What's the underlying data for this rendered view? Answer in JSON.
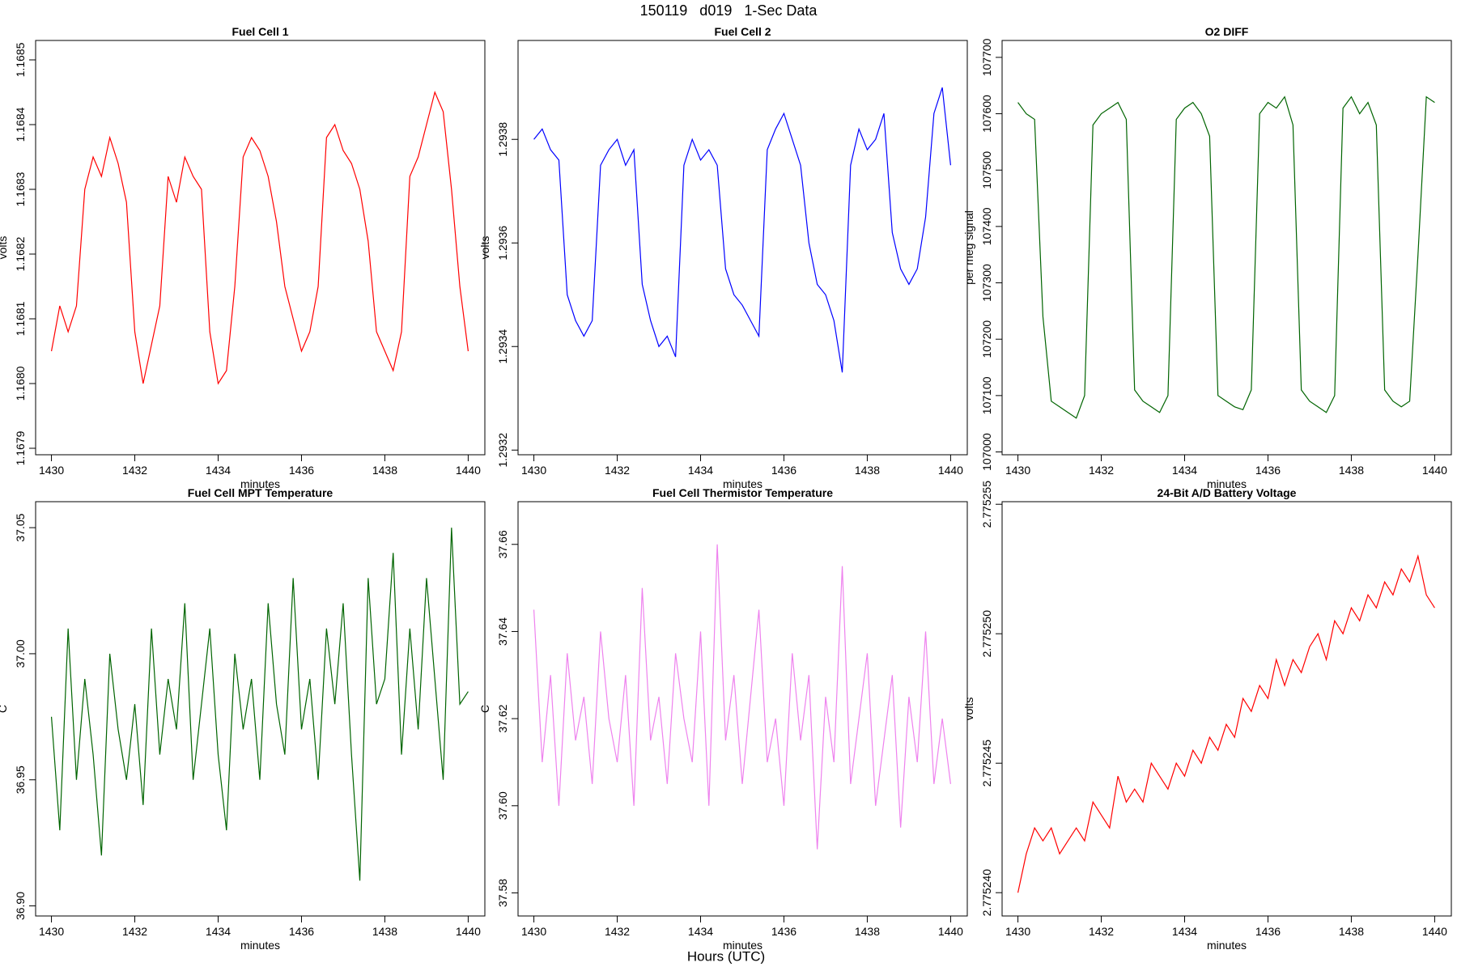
{
  "title": "150119   d019   1-Sec Data",
  "x_axis_title": "Hours (UTC)",
  "chart_data": [
    {
      "type": "line",
      "title": "Fuel Cell 1",
      "xlabel": "minutes",
      "ylabel": "volts",
      "x": [
        1430,
        1430.2,
        1430.4,
        1430.6,
        1430.8,
        1431,
        1431.2,
        1431.4,
        1431.6,
        1431.8,
        1432,
        1432.2,
        1432.4,
        1432.6,
        1432.8,
        1433,
        1433.2,
        1433.4,
        1433.6,
        1433.8,
        1434,
        1434.2,
        1434.4,
        1434.6,
        1434.8,
        1435,
        1435.2,
        1435.4,
        1435.6,
        1435.8,
        1436,
        1436.2,
        1436.4,
        1436.6,
        1436.8,
        1437,
        1437.2,
        1437.4,
        1437.6,
        1437.8,
        1438,
        1438.2,
        1438.4,
        1438.6,
        1438.8,
        1439,
        1439.2,
        1439.4,
        1439.6,
        1439.8,
        1440
      ],
      "series": [
        {
          "color": "#ff0000",
          "values": [
            1.16805,
            1.16812,
            1.16808,
            1.16812,
            1.1683,
            1.16835,
            1.16832,
            1.16838,
            1.16834,
            1.16828,
            1.16808,
            1.168,
            1.16806,
            1.16812,
            1.16832,
            1.16828,
            1.16835,
            1.16832,
            1.1683,
            1.16808,
            1.168,
            1.16802,
            1.16815,
            1.16835,
            1.16838,
            1.16836,
            1.16832,
            1.16825,
            1.16815,
            1.1681,
            1.16805,
            1.16808,
            1.16815,
            1.16838,
            1.1684,
            1.16836,
            1.16834,
            1.1683,
            1.16822,
            1.16808,
            1.16805,
            1.16802,
            1.16808,
            1.16832,
            1.16835,
            1.1684,
            1.16845,
            1.16842,
            1.1683,
            1.16815,
            1.16805
          ]
        }
      ],
      "xlim": [
        1429.62,
        1440.4
      ],
      "xticks": [
        1430,
        1432,
        1434,
        1436,
        1438,
        1440
      ],
      "ylim": [
        1.16789,
        1.16853
      ],
      "yticks": [
        1.1679,
        {
          "value": 1.168,
          "label": "1.1680"
        },
        1.1681,
        1.1682,
        1.1683,
        1.1684,
        1.1685
      ]
    },
    {
      "type": "line",
      "title": "Fuel Cell 2",
      "xlabel": "minutes",
      "ylabel": "volts",
      "x": [
        1430,
        1430.2,
        1430.4,
        1430.6,
        1430.8,
        1431,
        1431.2,
        1431.4,
        1431.6,
        1431.8,
        1432,
        1432.2,
        1432.4,
        1432.6,
        1432.8,
        1433,
        1433.2,
        1433.4,
        1433.6,
        1433.8,
        1434,
        1434.2,
        1434.4,
        1434.6,
        1434.8,
        1435,
        1435.2,
        1435.4,
        1435.6,
        1435.8,
        1436,
        1436.2,
        1436.4,
        1436.6,
        1436.8,
        1437,
        1437.2,
        1437.4,
        1437.6,
        1437.8,
        1438,
        1438.2,
        1438.4,
        1438.6,
        1438.8,
        1439,
        1439.2,
        1439.4,
        1439.6,
        1439.8,
        1440
      ],
      "series": [
        {
          "color": "#0000ff",
          "values": [
            1.2938,
            1.29382,
            1.29378,
            1.29376,
            1.2935,
            1.29345,
            1.29342,
            1.29345,
            1.29375,
            1.29378,
            1.2938,
            1.29375,
            1.29378,
            1.29352,
            1.29345,
            1.2934,
            1.29342,
            1.29338,
            1.29375,
            1.2938,
            1.29376,
            1.29378,
            1.29375,
            1.29355,
            1.2935,
            1.29348,
            1.29345,
            1.29342,
            1.29378,
            1.29382,
            1.29385,
            1.2938,
            1.29375,
            1.2936,
            1.29352,
            1.2935,
            1.29345,
            1.29335,
            1.29375,
            1.29382,
            1.29378,
            1.2938,
            1.29385,
            1.29362,
            1.29355,
            1.29352,
            1.29355,
            1.29365,
            1.29385,
            1.2939,
            1.29375
          ]
        }
      ],
      "xlim": [
        1429.62,
        1440.4
      ],
      "xticks": [
        1430,
        1432,
        1434,
        1436,
        1438,
        1440
      ],
      "ylim": [
        1.293191,
        1.293991
      ],
      "yticks": [
        1.2932,
        1.2934,
        1.2936,
        1.2938
      ]
    },
    {
      "type": "line",
      "title": "O2 DIFF",
      "xlabel": "minutes",
      "ylabel": "per meg signal",
      "x": [
        1430,
        1430.2,
        1430.4,
        1430.6,
        1430.8,
        1431,
        1431.2,
        1431.4,
        1431.6,
        1431.8,
        1432,
        1432.2,
        1432.4,
        1432.6,
        1432.8,
        1433,
        1433.2,
        1433.4,
        1433.6,
        1433.8,
        1434,
        1434.2,
        1434.4,
        1434.6,
        1434.8,
        1435,
        1435.2,
        1435.4,
        1435.6,
        1435.8,
        1436,
        1436.2,
        1436.4,
        1436.6,
        1436.8,
        1437,
        1437.2,
        1437.4,
        1437.6,
        1437.8,
        1438,
        1438.2,
        1438.4,
        1438.6,
        1438.8,
        1439,
        1439.2,
        1439.4,
        1439.6,
        1439.8,
        1440
      ],
      "series": [
        {
          "color": "#006400",
          "values": [
            107620,
            107600,
            107590,
            107240,
            107090,
            107080,
            107070,
            107060,
            107100,
            107580,
            107600,
            107610,
            107620,
            107590,
            107110,
            107090,
            107080,
            107070,
            107100,
            107590,
            107610,
            107620,
            107600,
            107560,
            107100,
            107090,
            107080,
            107075,
            107110,
            107600,
            107620,
            107610,
            107630,
            107580,
            107110,
            107090,
            107080,
            107070,
            107100,
            107610,
            107630,
            107600,
            107620,
            107580,
            107110,
            107090,
            107080,
            107090,
            107350,
            107630,
            107620
          ]
        }
      ],
      "xlim": [
        1429.62,
        1440.4
      ],
      "xticks": [
        1430,
        1432,
        1434,
        1436,
        1438,
        1440
      ],
      "ylim": [
        106995,
        107730
      ],
      "yticks": [
        107000,
        107100,
        107200,
        107300,
        107400,
        107500,
        107600,
        107700
      ]
    },
    {
      "type": "line",
      "title": "Fuel Cell MPT Temperature",
      "xlabel": "minutes",
      "ylabel": "C",
      "x": [
        1430,
        1430.2,
        1430.4,
        1430.6,
        1430.8,
        1431,
        1431.2,
        1431.4,
        1431.6,
        1431.8,
        1432,
        1432.2,
        1432.4,
        1432.6,
        1432.8,
        1433,
        1433.2,
        1433.4,
        1433.6,
        1433.8,
        1434,
        1434.2,
        1434.4,
        1434.6,
        1434.8,
        1435,
        1435.2,
        1435.4,
        1435.6,
        1435.8,
        1436,
        1436.2,
        1436.4,
        1436.6,
        1436.8,
        1437,
        1437.2,
        1437.4,
        1437.6,
        1437.8,
        1438,
        1438.2,
        1438.4,
        1438.6,
        1438.8,
        1439,
        1439.2,
        1439.4,
        1439.6,
        1439.8,
        1440
      ],
      "series": [
        {
          "color": "#006400",
          "values": [
            36.975,
            36.93,
            37.01,
            36.95,
            36.99,
            36.96,
            36.92,
            37.0,
            36.97,
            36.95,
            36.98,
            36.94,
            37.01,
            36.96,
            36.99,
            36.97,
            37.02,
            36.95,
            36.98,
            37.01,
            36.96,
            36.93,
            37.0,
            36.97,
            36.99,
            36.95,
            37.02,
            36.98,
            36.96,
            37.03,
            36.97,
            36.99,
            36.95,
            37.01,
            36.98,
            37.02,
            36.96,
            36.91,
            37.03,
            36.98,
            36.99,
            37.04,
            36.96,
            37.01,
            36.97,
            37.03,
            36.99,
            36.95,
            37.05,
            36.98,
            36.985
          ]
        }
      ],
      "xlim": [
        1429.62,
        1440.4
      ],
      "xticks": [
        1430,
        1432,
        1434,
        1436,
        1438,
        1440
      ],
      "ylim": [
        36.896,
        37.0603
      ],
      "yticks": [
        {
          "value": 36.9,
          "label": "36.90"
        },
        36.95,
        {
          "value": 37,
          "label": "37.00"
        },
        37.05
      ]
    },
    {
      "type": "line",
      "title": "Fuel Cell Thermistor Temperature",
      "xlabel": "minutes",
      "ylabel": "C",
      "x": [
        1430,
        1430.2,
        1430.4,
        1430.6,
        1430.8,
        1431,
        1431.2,
        1431.4,
        1431.6,
        1431.8,
        1432,
        1432.2,
        1432.4,
        1432.6,
        1432.8,
        1433,
        1433.2,
        1433.4,
        1433.6,
        1433.8,
        1434,
        1434.2,
        1434.4,
        1434.6,
        1434.8,
        1435,
        1435.2,
        1435.4,
        1435.6,
        1435.8,
        1436,
        1436.2,
        1436.4,
        1436.6,
        1436.8,
        1437,
        1437.2,
        1437.4,
        1437.6,
        1437.8,
        1438,
        1438.2,
        1438.4,
        1438.6,
        1438.8,
        1439,
        1439.2,
        1439.4,
        1439.6,
        1439.8,
        1440
      ],
      "series": [
        {
          "color": "#ee82ee",
          "values": [
            37.645,
            37.61,
            37.63,
            37.6,
            37.635,
            37.615,
            37.625,
            37.605,
            37.64,
            37.62,
            37.61,
            37.63,
            37.6,
            37.65,
            37.615,
            37.625,
            37.605,
            37.635,
            37.62,
            37.61,
            37.64,
            37.6,
            37.66,
            37.615,
            37.63,
            37.605,
            37.625,
            37.645,
            37.61,
            37.62,
            37.6,
            37.635,
            37.615,
            37.63,
            37.59,
            37.625,
            37.61,
            37.655,
            37.605,
            37.62,
            37.635,
            37.6,
            37.615,
            37.63,
            37.595,
            37.625,
            37.61,
            37.64,
            37.605,
            37.62,
            37.605
          ]
        }
      ],
      "xlim": [
        1429.62,
        1440.4
      ],
      "xticks": [
        1430,
        1432,
        1434,
        1436,
        1438,
        1440
      ],
      "ylim": [
        37.5747,
        37.6698
      ],
      "yticks": [
        37.58,
        {
          "value": 37.6,
          "label": "37.60"
        },
        37.62,
        37.64,
        37.66
      ]
    },
    {
      "type": "line",
      "title": "24-Bit A/D Battery Voltage",
      "xlabel": "minutes",
      "ylabel": "volts",
      "x": [
        1430,
        1430.2,
        1430.4,
        1430.6,
        1430.8,
        1431,
        1431.2,
        1431.4,
        1431.6,
        1431.8,
        1432,
        1432.2,
        1432.4,
        1432.6,
        1432.8,
        1433,
        1433.2,
        1433.4,
        1433.6,
        1433.8,
        1434,
        1434.2,
        1434.4,
        1434.6,
        1434.8,
        1435,
        1435.2,
        1435.4,
        1435.6,
        1435.8,
        1436,
        1436.2,
        1436.4,
        1436.6,
        1436.8,
        1437,
        1437.2,
        1437.4,
        1437.6,
        1437.8,
        1438,
        1438.2,
        1438.4,
        1438.6,
        1438.8,
        1439,
        1439.2,
        1439.4,
        1439.6,
        1439.8,
        1440
      ],
      "series": [
        {
          "color": "#ff0000",
          "values": [
            2.77524,
            2.7752415,
            2.7752425,
            2.775242,
            2.7752425,
            2.7752415,
            2.775242,
            2.7752425,
            2.775242,
            2.7752435,
            2.775243,
            2.7752425,
            2.7752445,
            2.7752435,
            2.775244,
            2.7752435,
            2.775245,
            2.7752445,
            2.775244,
            2.775245,
            2.7752445,
            2.7752455,
            2.775245,
            2.775246,
            2.7752455,
            2.7752465,
            2.775246,
            2.7752475,
            2.775247,
            2.775248,
            2.7752475,
            2.775249,
            2.775248,
            2.775249,
            2.7752485,
            2.7752495,
            2.77525,
            2.775249,
            2.7752505,
            2.77525,
            2.775251,
            2.7752505,
            2.7752515,
            2.775251,
            2.775252,
            2.7752515,
            2.7752525,
            2.775252,
            2.775253,
            2.7752515,
            2.775251
          ]
        }
      ],
      "xlim": [
        1429.62,
        1440.4
      ],
      "xticks": [
        1430,
        1432,
        1434,
        1436,
        1438,
        1440
      ],
      "ylim": [
        2.7752391,
        2.7752551
      ],
      "yticks": [
        {
          "value": 2.77524,
          "label": "2.775240"
        },
        2.775245,
        {
          "value": 2.77525,
          "label": "2.775250"
        },
        2.775255
      ]
    }
  ]
}
